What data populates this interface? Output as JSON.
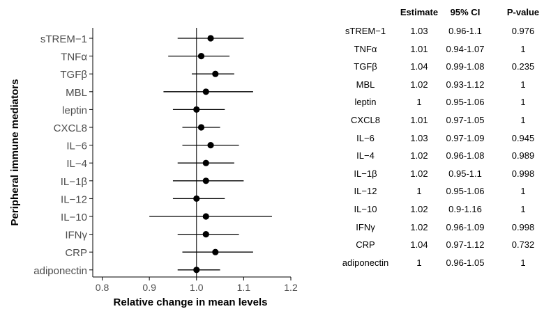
{
  "chart_data": {
    "type": "forest",
    "ylabel": "Peripheral immune mediators",
    "xlabel": "Relative change in mean levels",
    "xlim": [
      0.78,
      1.2
    ],
    "xticks": [
      0.8,
      0.9,
      1.0,
      1.1,
      1.2
    ],
    "xtick_labels": [
      "0.8",
      "0.9",
      "1.0",
      "1.1",
      "1.2"
    ],
    "reference_line": 1.0,
    "grid": false,
    "rows": [
      {
        "label": "sTREM−1",
        "estimate": 1.03,
        "ci_low": 0.96,
        "ci_high": 1.1
      },
      {
        "label": "TNFα",
        "estimate": 1.01,
        "ci_low": 0.94,
        "ci_high": 1.07
      },
      {
        "label": "TGFβ",
        "estimate": 1.04,
        "ci_low": 0.99,
        "ci_high": 1.08
      },
      {
        "label": "MBL",
        "estimate": 1.02,
        "ci_low": 0.93,
        "ci_high": 1.12
      },
      {
        "label": "leptin",
        "estimate": 1.0,
        "ci_low": 0.95,
        "ci_high": 1.06
      },
      {
        "label": "CXCL8",
        "estimate": 1.01,
        "ci_low": 0.97,
        "ci_high": 1.05
      },
      {
        "label": "IL−6",
        "estimate": 1.03,
        "ci_low": 0.97,
        "ci_high": 1.09
      },
      {
        "label": "IL−4",
        "estimate": 1.02,
        "ci_low": 0.96,
        "ci_high": 1.08
      },
      {
        "label": "IL−1β",
        "estimate": 1.02,
        "ci_low": 0.95,
        "ci_high": 1.1
      },
      {
        "label": "IL−12",
        "estimate": 1.0,
        "ci_low": 0.95,
        "ci_high": 1.06
      },
      {
        "label": "IL−10",
        "estimate": 1.02,
        "ci_low": 0.9,
        "ci_high": 1.16
      },
      {
        "label": "IFNγ",
        "estimate": 1.02,
        "ci_low": 0.96,
        "ci_high": 1.09
      },
      {
        "label": "CRP",
        "estimate": 1.04,
        "ci_low": 0.97,
        "ci_high": 1.12
      },
      {
        "label": "adiponectin",
        "estimate": 1.0,
        "ci_low": 0.96,
        "ci_high": 1.05
      }
    ]
  },
  "table": {
    "headers": [
      "Estimate",
      "95% CI",
      "P-value"
    ],
    "rows": [
      {
        "mediator": "sTREM−1",
        "estimate": "1.03",
        "ci": "0.96-1.1",
        "p": "0.976"
      },
      {
        "mediator": "TNFα",
        "estimate": "1.01",
        "ci": "0.94-1.07",
        "p": "1"
      },
      {
        "mediator": "TGFβ",
        "estimate": "1.04",
        "ci": "0.99-1.08",
        "p": "0.235"
      },
      {
        "mediator": "MBL",
        "estimate": "1.02",
        "ci": "0.93-1.12",
        "p": "1"
      },
      {
        "mediator": "leptin",
        "estimate": "1",
        "ci": "0.95-1.06",
        "p": "1"
      },
      {
        "mediator": "CXCL8",
        "estimate": "1.01",
        "ci": "0.97-1.05",
        "p": "1"
      },
      {
        "mediator": "IL−6",
        "estimate": "1.03",
        "ci": "0.97-1.09",
        "p": "0.945"
      },
      {
        "mediator": "IL−4",
        "estimate": "1.02",
        "ci": "0.96-1.08",
        "p": "0.989"
      },
      {
        "mediator": "IL−1β",
        "estimate": "1.02",
        "ci": "0.95-1.1",
        "p": "0.998"
      },
      {
        "mediator": "IL−12",
        "estimate": "1",
        "ci": "0.95-1.06",
        "p": "1"
      },
      {
        "mediator": "IL−10",
        "estimate": "1.02",
        "ci": "0.9-1.16",
        "p": "1"
      },
      {
        "mediator": "IFNγ",
        "estimate": "1.02",
        "ci": "0.96-1.09",
        "p": "0.998"
      },
      {
        "mediator": "CRP",
        "estimate": "1.04",
        "ci": "0.97-1.12",
        "p": "0.732"
      },
      {
        "mediator": "adiponectin",
        "estimate": "1",
        "ci": "0.96-1.05",
        "p": "1"
      }
    ]
  }
}
